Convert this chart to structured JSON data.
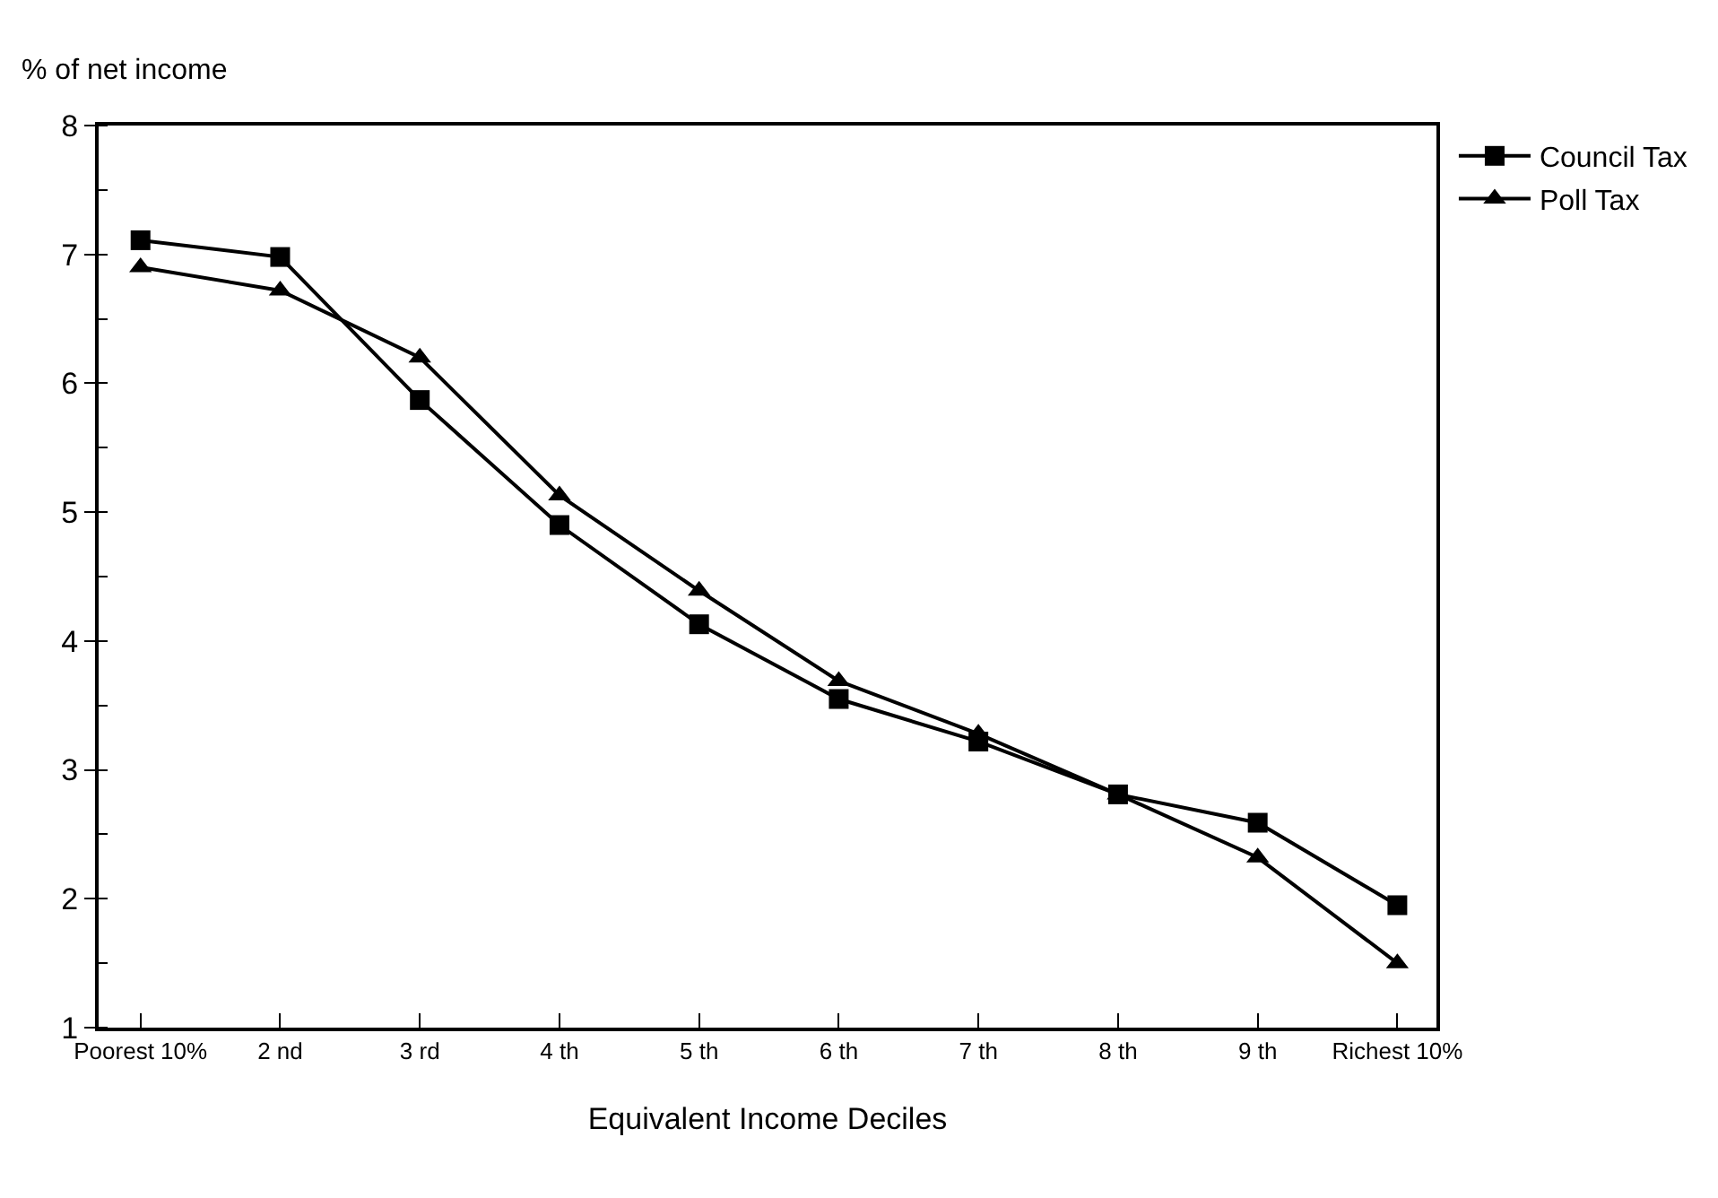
{
  "chart_data": {
    "type": "line",
    "ylabel": "% of net income",
    "xlabel": "Equivalent Income Deciles",
    "categories": [
      "Poorest 10%",
      "2 nd",
      "3 rd",
      "4 th",
      "5 th",
      "6 th",
      "7 th",
      "8 th",
      "9 th",
      "Richest 10%"
    ],
    "series": [
      {
        "name": "Council Tax",
        "color": "#000000",
        "marker": "square",
        "values": [
          7.11,
          6.98,
          5.87,
          4.9,
          4.13,
          3.55,
          3.22,
          2.81,
          2.59,
          1.95
        ]
      },
      {
        "name": "Poll Tax",
        "color": "#000000",
        "marker": "triangle",
        "values": [
          6.9,
          6.72,
          6.2,
          5.13,
          4.39,
          3.69,
          3.28,
          2.81,
          2.32,
          1.5
        ]
      }
    ],
    "ylim": [
      1,
      8
    ],
    "yticks": [
      1,
      2,
      3,
      4,
      5,
      6,
      7,
      8
    ],
    "legend": "right",
    "line_style": "solid"
  }
}
